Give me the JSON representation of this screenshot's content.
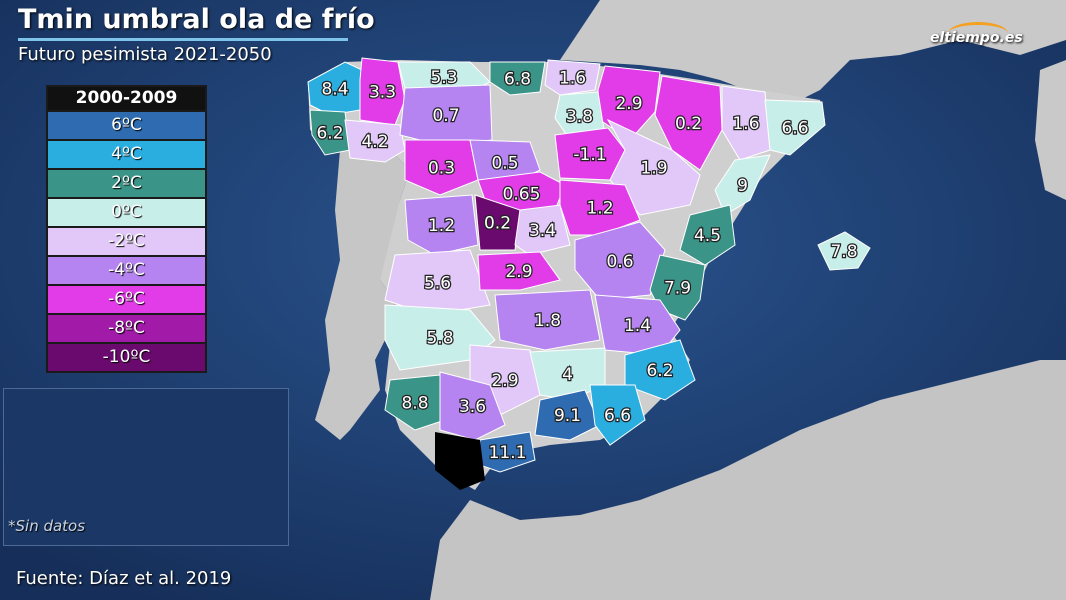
{
  "title": "Tmin umbral ola de frío",
  "subtitle": "Futuro pesimista 2021-2050",
  "brand": "eltiempo.es",
  "source": "Fuente: Díaz et al. 2019",
  "no_data_note": "*Sin datos",
  "legend": {
    "title": "2000-2009",
    "items": [
      {
        "label": "6ºC",
        "color": "#2e6bb0"
      },
      {
        "label": "4ºC",
        "color": "#2aaee0"
      },
      {
        "label": "2ºC",
        "color": "#3a9487"
      },
      {
        "label": "0ºC",
        "color": "#c8eeea"
      },
      {
        "label": "-2ºC",
        "color": "#e2c8f8"
      },
      {
        "label": "-4ºC",
        "color": "#b584f0"
      },
      {
        "label": "-6ºC",
        "color": "#e23ce8"
      },
      {
        "label": "-8ºC",
        "color": "#a21aa8"
      },
      {
        "label": "-10ºC",
        "color": "#6a0a6e"
      }
    ]
  },
  "provinces": [
    {
      "value": "8.4",
      "color": "#2aaee0"
    },
    {
      "value": "3.3",
      "color": "#e23ce8"
    },
    {
      "value": "5.3",
      "color": "#c8eeea"
    },
    {
      "value": "6.8",
      "color": "#3a9487"
    },
    {
      "value": "1.6",
      "color": "#e2c8f8"
    },
    {
      "value": "2.9",
      "color": "#e23ce8"
    },
    {
      "value": "0.2",
      "color": "#e23ce8"
    },
    {
      "value": "6.2",
      "color": "#3a9487"
    },
    {
      "value": "4.2",
      "color": "#e2c8f8"
    },
    {
      "value": "0.7",
      "color": "#b584f0"
    },
    {
      "value": "3.8",
      "color": "#c8eeea"
    },
    {
      "value": "1.6",
      "color": "#e2c8f8"
    },
    {
      "value": "6.6",
      "color": "#c8eeea"
    },
    {
      "value": "0.3",
      "color": "#e23ce8"
    },
    {
      "value": "0.5",
      "color": "#b584f0"
    },
    {
      "value": "-1.1",
      "color": "#e23ce8"
    },
    {
      "value": "1.9",
      "color": "#e2c8f8"
    },
    {
      "value": "0.65",
      "color": "#e23ce8"
    },
    {
      "value": "9",
      "color": "#c8eeea"
    },
    {
      "value": "1.2",
      "color": "#b584f0"
    },
    {
      "value": "0.2",
      "color": "#6a0a6e"
    },
    {
      "value": "3.4",
      "color": "#e2c8f8"
    },
    {
      "value": "1.2",
      "color": "#e23ce8"
    },
    {
      "value": "4.5",
      "color": "#3a9487"
    },
    {
      "value": "5.6",
      "color": "#e2c8f8"
    },
    {
      "value": "2.9",
      "color": "#e23ce8"
    },
    {
      "value": "0.6",
      "color": "#b584f0"
    },
    {
      "value": "7.9",
      "color": "#3a9487"
    },
    {
      "value": "7.8",
      "color": "#c8eeea"
    },
    {
      "value": "1.8",
      "color": "#b584f0"
    },
    {
      "value": "1.4",
      "color": "#b584f0"
    },
    {
      "value": "5.8",
      "color": "#c8eeea"
    },
    {
      "value": "2.9",
      "color": "#e2c8f8"
    },
    {
      "value": "4",
      "color": "#c8eeea"
    },
    {
      "value": "6.2",
      "color": "#2aaee0"
    },
    {
      "value": "8.8",
      "color": "#3a9487"
    },
    {
      "value": "3.6",
      "color": "#b584f0"
    },
    {
      "value": "9.1",
      "color": "#2e6bb0"
    },
    {
      "value": "6.6",
      "color": "#2aaee0"
    },
    {
      "value": "11.1",
      "color": "#2e6bb0"
    }
  ]
}
